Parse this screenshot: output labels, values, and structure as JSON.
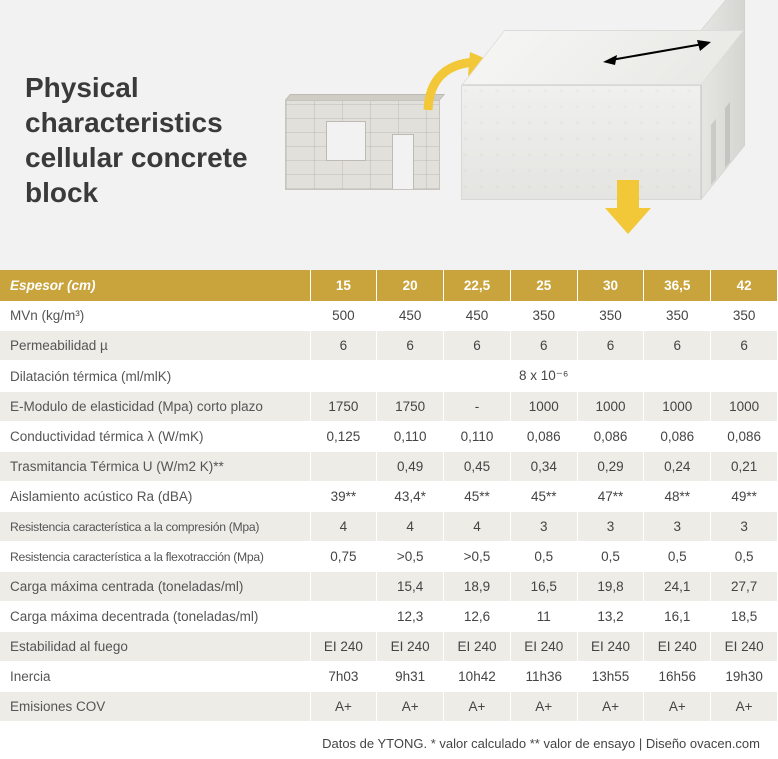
{
  "hero": {
    "title": "Physical characteristics cellular concrete block",
    "accent_color": "#f3c838",
    "bg_color": "#f2f2f2"
  },
  "table": {
    "header_bg": "#c9a33b",
    "header_fg": "#ffffff",
    "row_even_bg": "#eeece7",
    "row_odd_bg": "#ffffff",
    "columns": [
      "Espesor (cm)",
      "15",
      "20",
      "22,5",
      "25",
      "30",
      "36,5",
      "42"
    ],
    "rows": [
      {
        "label": "MVn (kg/m³)",
        "cells": [
          "500",
          "450",
          "450",
          "350",
          "350",
          "350",
          "350"
        ]
      },
      {
        "label": "Permeabilidad µ",
        "cells": [
          "6",
          "6",
          "6",
          "6",
          "6",
          "6",
          "6"
        ]
      },
      {
        "label": "Dilatación térmica (ml/mlK)",
        "span": "8 x 10⁻⁶"
      },
      {
        "label": "E-Modulo de elasticidad (Mpa) corto plazo",
        "cells": [
          "1750",
          "1750",
          "-",
          "1000",
          "1000",
          "1000",
          "1000"
        ]
      },
      {
        "label": "Conductividad térmica λ (W/mK)",
        "cells": [
          "0,125",
          "0,110",
          "0,110",
          "0,086",
          "0,086",
          "0,086",
          "0,086"
        ]
      },
      {
        "label": "Trasmitancia Térmica U (W/m2 K)**",
        "cells": [
          "",
          "0,49",
          "0,45",
          "0,34",
          "0,29",
          "0,24",
          "0,21"
        ]
      },
      {
        "label": "Aislamiento acústico Ra (dBA)",
        "cells": [
          "39**",
          "43,4*",
          "45**",
          "45**",
          "47**",
          "48**",
          "49**"
        ]
      },
      {
        "label": "Resistencia característica a la compresión (Mpa)",
        "small": true,
        "cells": [
          "4",
          "4",
          "4",
          "3",
          "3",
          "3",
          "3"
        ]
      },
      {
        "label": "Resistencia característica a la flexotracción (Mpa)",
        "small": true,
        "cells": [
          "0,75",
          ">0,5",
          ">0,5",
          "0,5",
          "0,5",
          "0,5",
          "0,5"
        ]
      },
      {
        "label": "Carga máxima centrada (toneladas/ml)",
        "cells": [
          "",
          "15,4",
          "18,9",
          "16,5",
          "19,8",
          "24,1",
          "27,7"
        ]
      },
      {
        "label": "Carga máxima decentrada (toneladas/ml)",
        "cells": [
          "",
          "12,3",
          "12,6",
          "11",
          "13,2",
          "16,1",
          "18,5"
        ]
      },
      {
        "label": "Estabilidad al fuego",
        "cells": [
          "EI 240",
          "EI 240",
          "EI 240",
          "EI 240",
          "EI 240",
          "EI 240",
          "EI 240"
        ]
      },
      {
        "label": "Inercia",
        "cells": [
          "7h03",
          "9h31",
          "10h42",
          "11h36",
          "13h55",
          "16h56",
          "19h30"
        ]
      },
      {
        "label": "Emisiones COV",
        "cells": [
          "A+",
          "A+",
          "A+",
          "A+",
          "A+",
          "A+",
          "A+"
        ]
      }
    ]
  },
  "footnote": "Datos de YTONG. * valor calculado ** valor de ensayo | Diseño  ovacen.com"
}
